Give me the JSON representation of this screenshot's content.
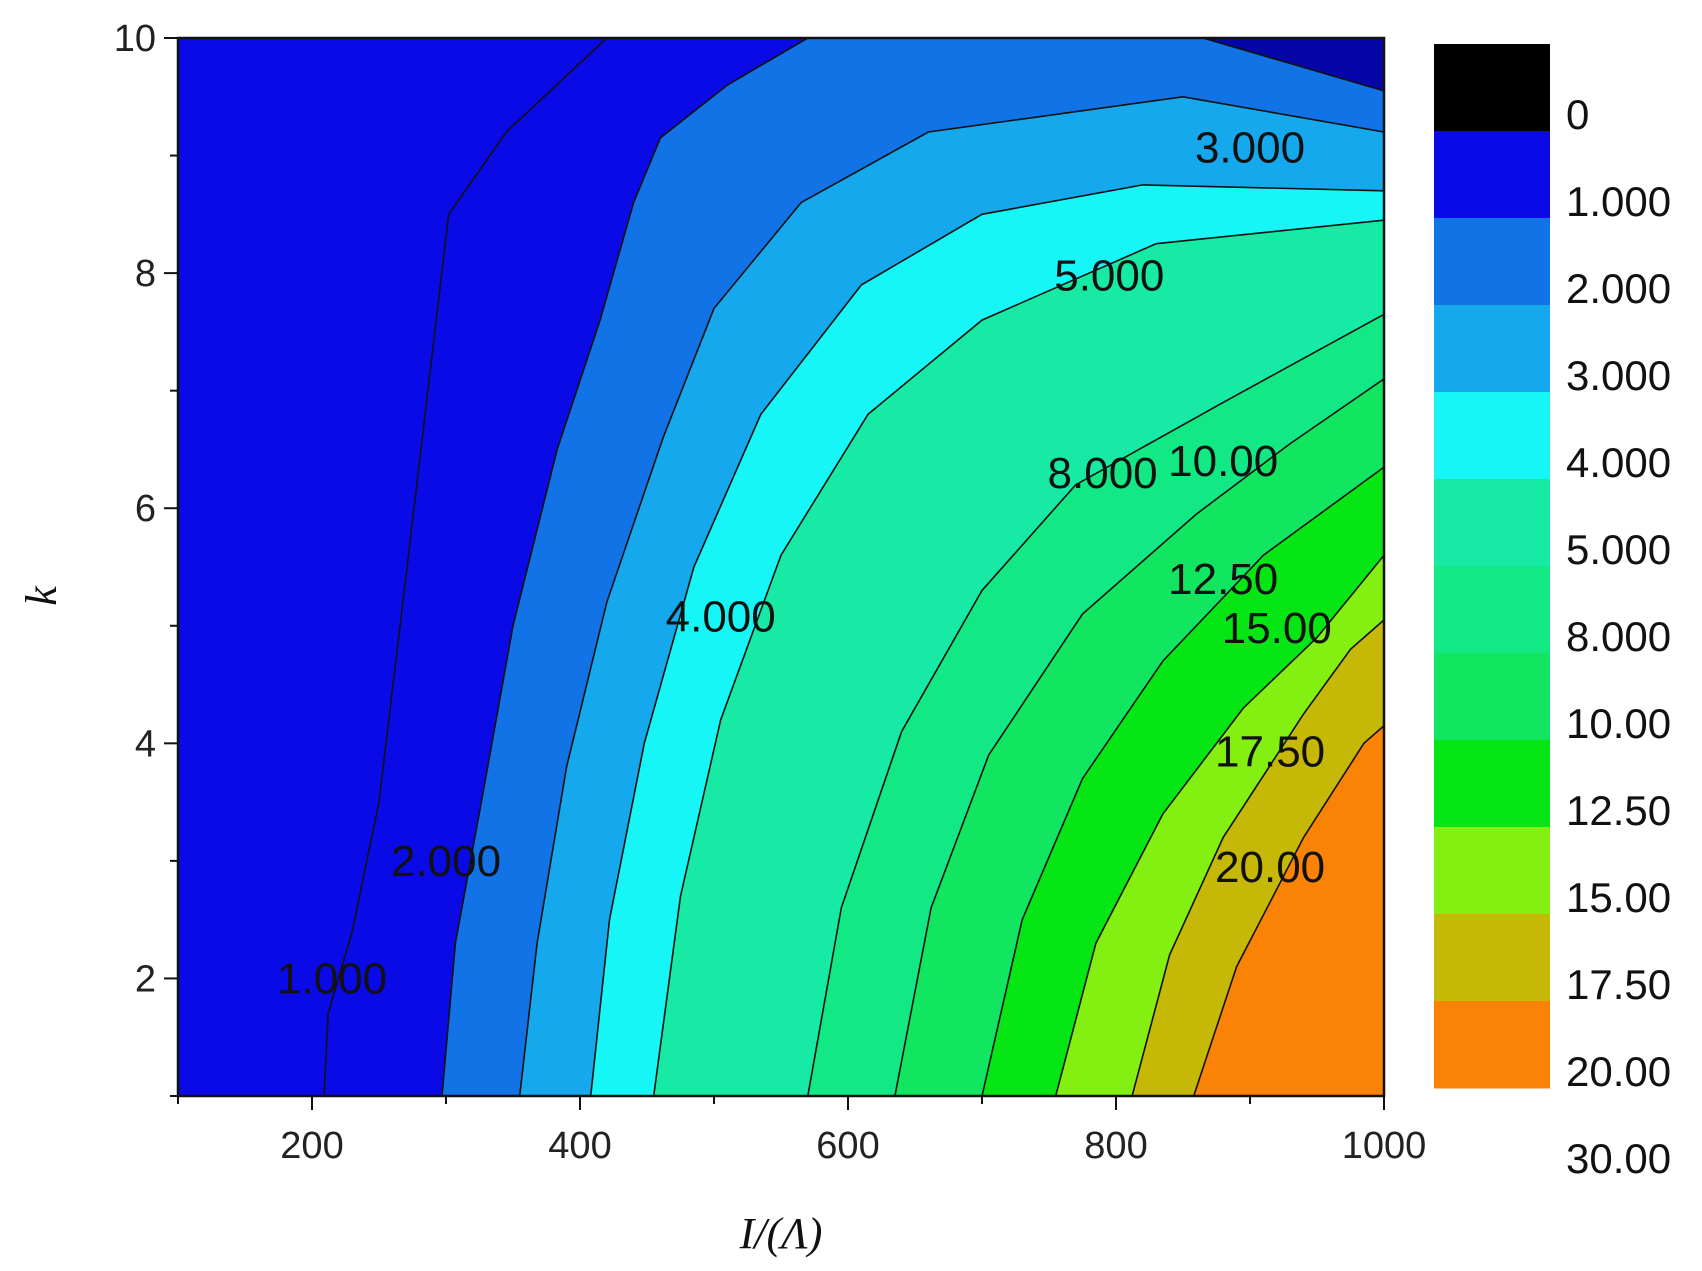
{
  "chart_data": {
    "type": "contour",
    "xlabel": "I/(Λ)",
    "ylabel": "k",
    "xlim": [
      100,
      1000
    ],
    "ylim": [
      1,
      10
    ],
    "x_ticks": [
      200,
      400,
      600,
      800,
      1000
    ],
    "x_tick_labels": [
      "200",
      "400",
      "600",
      "800",
      "1000"
    ],
    "y_ticks": [
      2,
      4,
      6,
      8,
      10
    ],
    "y_tick_labels": [
      "2",
      "4",
      "6",
      "8",
      "10"
    ],
    "levels": [
      0,
      1,
      2,
      3,
      4,
      5,
      8,
      10,
      12.5,
      15,
      17.5,
      20,
      30
    ],
    "level_labels": [
      "0",
      "1.000",
      "2.000",
      "3.000",
      "4.000",
      "5.000",
      "8.000",
      "10.00",
      "12.50",
      "15.00",
      "17.50",
      "20.00",
      "30.00"
    ],
    "band_colors": [
      "#000000",
      "#0a0ae6",
      "#1273e6",
      "#16a8ec",
      "#16f6f6",
      "#16eaa4",
      "#12e884",
      "#12e660",
      "#06e614",
      "#84f012",
      "#c6b806",
      "#fa8204"
    ],
    "contours": [
      {
        "level": 1,
        "label": "1.000",
        "label_at": [
          215,
          2
        ],
        "points": [
          [
            209,
            1
          ],
          [
            212,
            1.7
          ],
          [
            230,
            2.4
          ],
          [
            250,
            3.5
          ],
          [
            272,
            5.6
          ],
          [
            302,
            8.5
          ],
          [
            345,
            9.2
          ],
          [
            420,
            10
          ]
        ]
      },
      {
        "level": 2,
        "label": "2.000",
        "label_at": [
          300,
          3
        ],
        "points": [
          [
            297,
            1
          ],
          [
            307,
            2.3
          ],
          [
            328,
            3.6
          ],
          [
            350,
            5
          ],
          [
            383,
            6.5
          ],
          [
            415,
            7.6
          ],
          [
            440,
            8.6
          ],
          [
            460,
            9.15
          ],
          [
            510,
            9.6
          ],
          [
            570,
            10
          ]
        ]
      },
      {
        "level": 3,
        "label": "3.000",
        "label_at": [
          900,
          9.07
        ],
        "points": [
          [
            355,
            1
          ],
          [
            368,
            2.3
          ],
          [
            390,
            3.8
          ],
          [
            420,
            5.2
          ],
          [
            462,
            6.6
          ],
          [
            500,
            7.7
          ],
          [
            565,
            8.6
          ],
          [
            660,
            9.2
          ],
          [
            850,
            9.5
          ],
          [
            1000,
            9.2
          ]
        ]
      },
      {
        "level": 4,
        "label": "4.000",
        "label_at": [
          505,
          5.08
        ],
        "points": [
          [
            408,
            1
          ],
          [
            422,
            2.5
          ],
          [
            448,
            4
          ],
          [
            485,
            5.5
          ],
          [
            535,
            6.8
          ],
          [
            610,
            7.9
          ],
          [
            700,
            8.5
          ],
          [
            820,
            8.75
          ],
          [
            1000,
            8.7
          ]
        ]
      },
      {
        "level": 5,
        "label": "5.000",
        "label_at": [
          795,
          7.98
        ],
        "points": [
          [
            455,
            1
          ],
          [
            475,
            2.7
          ],
          [
            505,
            4.2
          ],
          [
            550,
            5.6
          ],
          [
            615,
            6.8
          ],
          [
            700,
            7.6
          ],
          [
            830,
            8.25
          ],
          [
            1000,
            8.45
          ]
        ]
      },
      {
        "level": 8,
        "label": "8.000",
        "label_at": [
          790,
          6.3
        ],
        "points": [
          [
            570,
            1
          ],
          [
            595,
            2.6
          ],
          [
            640,
            4.1
          ],
          [
            700,
            5.3
          ],
          [
            770,
            6.2
          ],
          [
            880,
            6.9
          ],
          [
            1000,
            7.65
          ]
        ]
      },
      {
        "level": 10,
        "label": "10.00",
        "label_at": [
          880,
          6.4
        ],
        "points": [
          [
            635,
            1
          ],
          [
            662,
            2.6
          ],
          [
            705,
            3.9
          ],
          [
            775,
            5.1
          ],
          [
            860,
            5.95
          ],
          [
            930,
            6.55
          ],
          [
            1000,
            7.1
          ]
        ]
      },
      {
        "level": 12.5,
        "label": "12.50",
        "label_at": [
          880,
          5.4
        ],
        "points": [
          [
            700,
            1
          ],
          [
            730,
            2.5
          ],
          [
            775,
            3.7
          ],
          [
            835,
            4.7
          ],
          [
            910,
            5.6
          ],
          [
            1000,
            6.35
          ]
        ]
      },
      {
        "level": 15,
        "label": "15.00",
        "label_at": [
          920,
          4.98
        ],
        "points": [
          [
            755,
            1
          ],
          [
            785,
            2.3
          ],
          [
            835,
            3.4
          ],
          [
            895,
            4.3
          ],
          [
            950,
            4.9
          ],
          [
            1000,
            5.6
          ]
        ]
      },
      {
        "level": 17.5,
        "label": "17.50",
        "label_at": [
          915,
          3.93
        ],
        "points": [
          [
            812,
            1
          ],
          [
            840,
            2.2
          ],
          [
            880,
            3.2
          ],
          [
            940,
            4.25
          ],
          [
            975,
            4.8
          ],
          [
            1000,
            5.05
          ]
        ]
      },
      {
        "level": 20,
        "label": "20.00",
        "label_at": [
          915,
          2.95
        ],
        "points": [
          [
            858,
            1
          ],
          [
            890,
            2.1
          ],
          [
            940,
            3.2
          ],
          [
            985,
            4
          ],
          [
            1000,
            4.15
          ]
        ]
      },
      {
        "level": 0.5,
        "label": "",
        "label_at": null,
        "points": [
          [
            865,
            10
          ],
          [
            1000,
            9.55
          ]
        ]
      }
    ]
  }
}
